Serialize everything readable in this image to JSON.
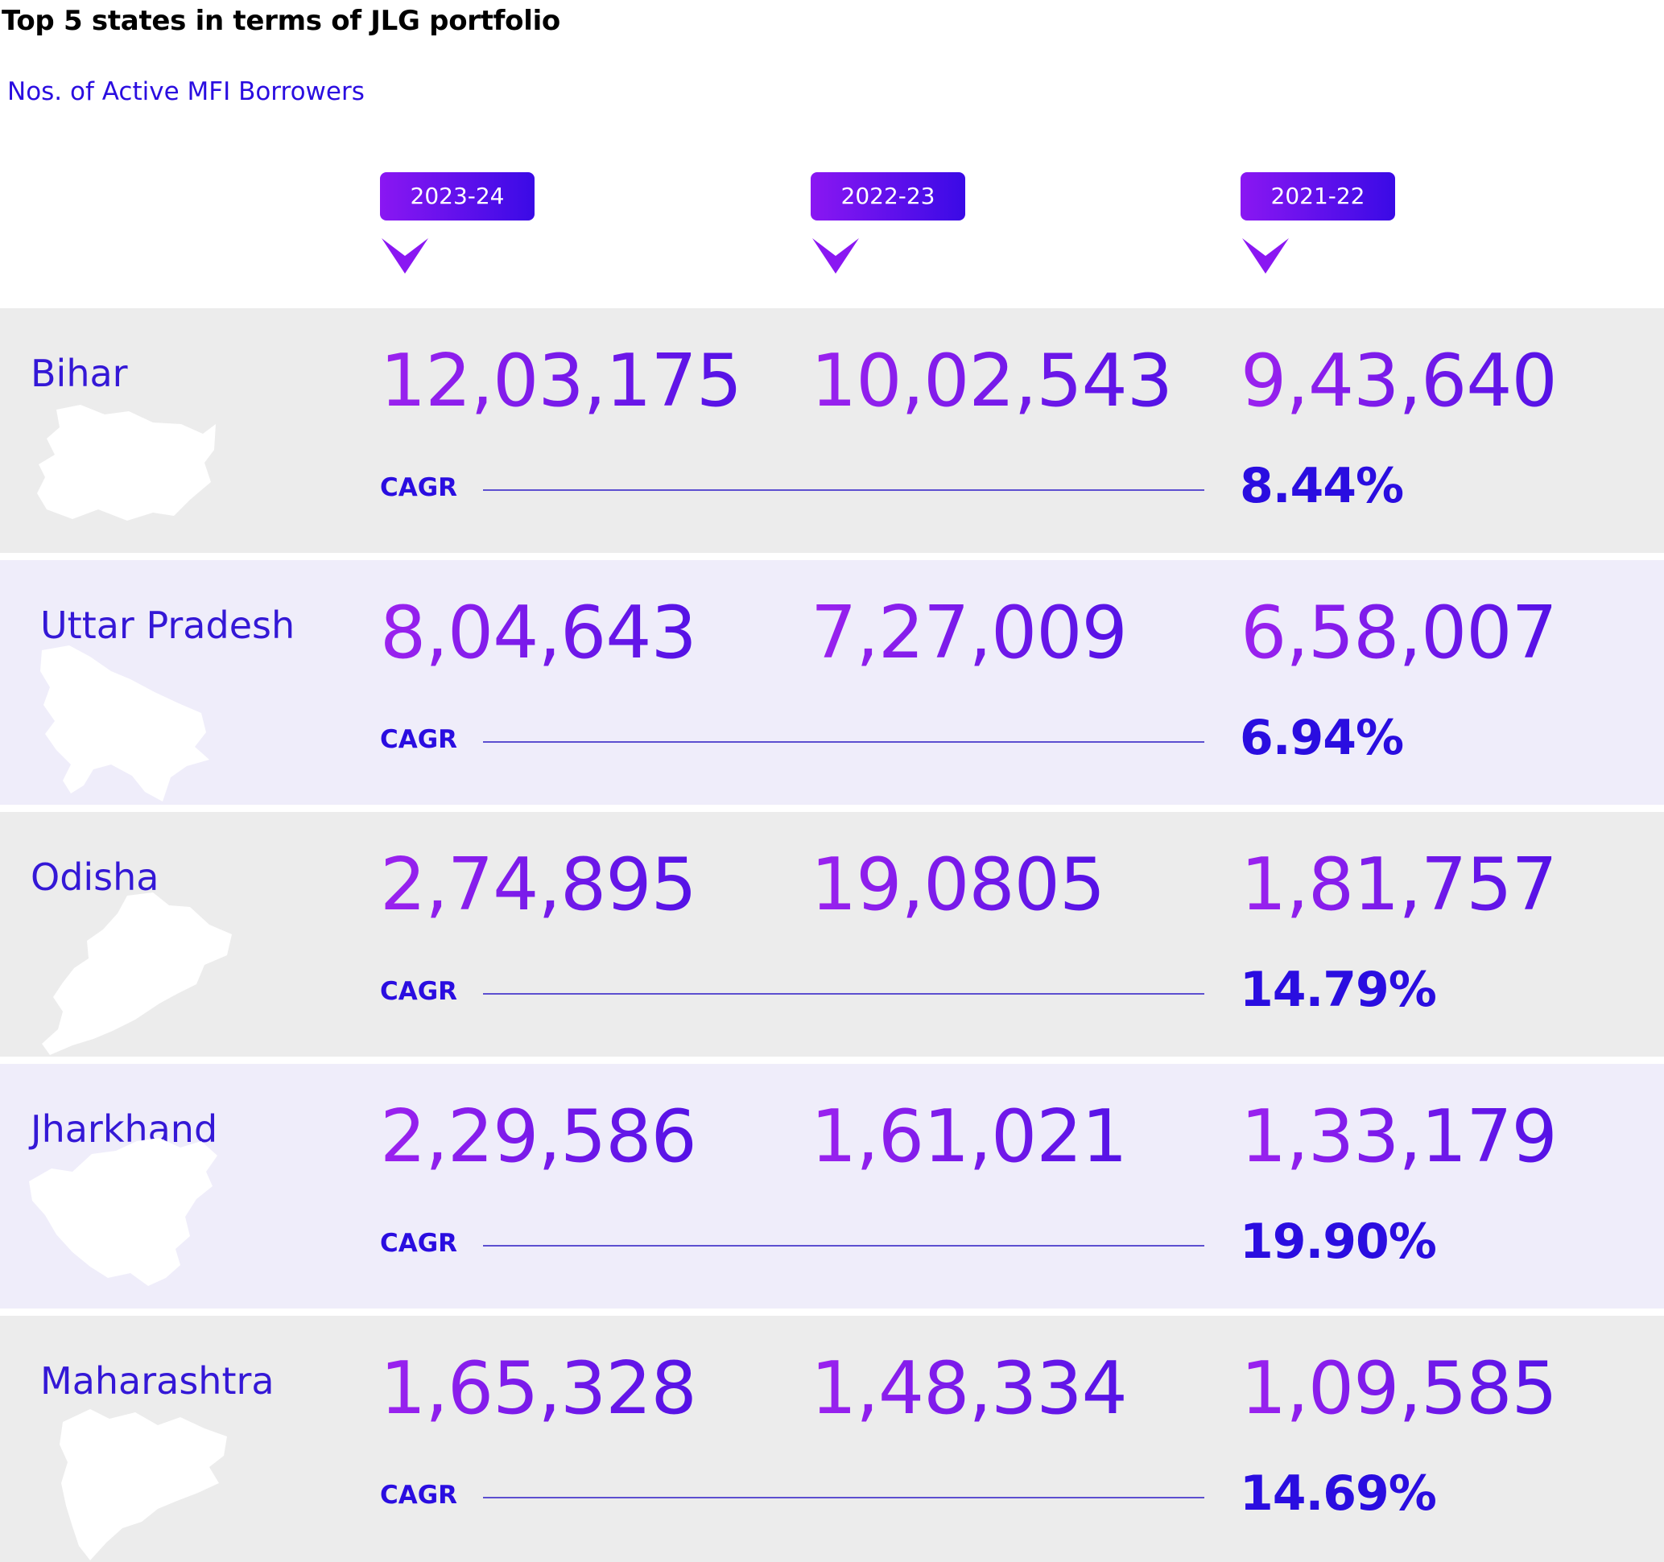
{
  "title": "Top 5 states in terms of JLG portfolio",
  "subtitle": "Nos. of Active MFI Borrowers",
  "years": [
    "2023-24",
    "2022-23",
    "2021-22"
  ],
  "cagr_label": "CAGR",
  "rows": [
    {
      "state": "Bihar",
      "values": [
        "12,03,175",
        "10,02,543",
        "9,43,640"
      ],
      "cagr": "8.44%"
    },
    {
      "state": "Uttar Pradesh",
      "values": [
        "8,04,643",
        "7,27,009",
        "6,58,007"
      ],
      "cagr": "6.94%"
    },
    {
      "state": "Odisha",
      "values": [
        "2,74,895",
        "19,0805",
        "1,81,757"
      ],
      "cagr": "14.79%"
    },
    {
      "state": "Jharkhand",
      "values": [
        "2,29,586",
        "1,61,021",
        "1,33,179"
      ],
      "cagr": "19.90%"
    },
    {
      "state": "Maharashtra",
      "values": [
        "1,65,328",
        "1,48,334",
        "1,09,585"
      ],
      "cagr": "14.69%"
    }
  ],
  "colors": {
    "accent_purple": "#8a17f2",
    "accent_blue": "#2a0de0",
    "row_gray": "#ececec",
    "row_lavender": "#efedfa"
  }
}
